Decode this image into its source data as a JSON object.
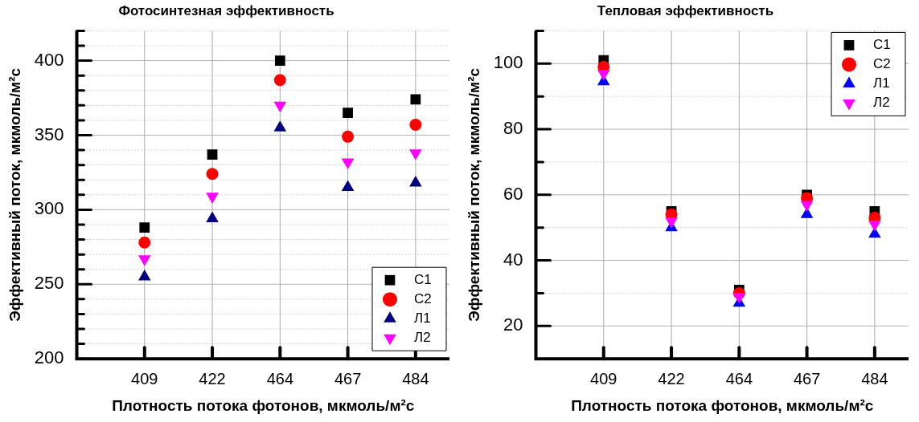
{
  "chart_data": [
    {
      "type": "scatter",
      "title": "Фотосинтезная эффективность",
      "xlabel": "Плотность потока фотонов, мкмоль/м²с",
      "ylabel": "Эффективный поток, мкмоль/м²с",
      "categories": [
        "409",
        "422",
        "464",
        "467",
        "484"
      ],
      "series": [
        {
          "name": "С1",
          "color": "#000000",
          "marker": "square",
          "values": [
            288,
            337,
            400,
            365,
            374
          ]
        },
        {
          "name": "С2",
          "color": "#ff0000",
          "marker": "circle",
          "values": [
            278,
            324,
            387,
            349,
            357
          ]
        },
        {
          "name": "Л1",
          "color": "#000080",
          "marker": "triangle",
          "values": [
            255,
            294,
            355,
            315,
            318
          ]
        },
        {
          "name": "Л2",
          "color": "#ff00ff",
          "marker": "triangle-down",
          "values": [
            267,
            309,
            370,
            332,
            338
          ]
        }
      ],
      "ylim": [
        200,
        420
      ],
      "yticks": [
        200,
        {
          "value": 210,
          "label": null
        },
        {
          "value": 220,
          "label": null
        },
        {
          "value": 230,
          "label": null
        },
        {
          "value": 240,
          "label": null
        },
        250,
        {
          "value": 260,
          "label": null
        },
        {
          "value": 270,
          "label": null
        },
        {
          "value": 280,
          "label": null
        },
        {
          "value": 290,
          "label": null
        },
        300,
        {
          "value": 310,
          "label": null
        },
        {
          "value": 320,
          "label": null
        },
        {
          "value": 330,
          "label": null
        },
        {
          "value": 340,
          "label": null
        },
        350,
        {
          "value": 360,
          "label": null
        },
        {
          "value": 370,
          "label": null
        },
        {
          "value": 380,
          "label": null
        },
        {
          "value": 390,
          "label": null
        },
        400,
        {
          "value": 410,
          "label": null
        },
        {
          "value": 420,
          "label": null
        }
      ],
      "grid": true,
      "legend": "bottom right"
    },
    {
      "type": "scatter",
      "title": "Тепловая эффективность",
      "xlabel": "Плотность потока фотонов, мкмоль/м²с",
      "ylabel": "Эффективный поток, мкмоль/м²с",
      "categories": [
        "409",
        "422",
        "464",
        "467",
        "484"
      ],
      "series": [
        {
          "name": "С1",
          "color": "#000000",
          "marker": "square",
          "values": [
            101,
            55,
            31,
            60,
            55
          ]
        },
        {
          "name": "С2",
          "color": "#ff0000",
          "marker": "circle",
          "values": [
            99,
            54,
            30,
            59,
            53
          ]
        },
        {
          "name": "Л1",
          "color": "#0000ff",
          "marker": "triangle",
          "values": [
            94.5,
            50,
            27,
            54,
            48
          ]
        },
        {
          "name": "Л2",
          "color": "#ff00ff",
          "marker": "triangle-down",
          "values": [
            97,
            52,
            29,
            57,
            51
          ]
        }
      ],
      "ylim": [
        10,
        110
      ],
      "yticks": [
        20,
        {
          "value": 30,
          "label": null
        },
        40,
        {
          "value": 50,
          "label": null
        },
        60,
        {
          "value": 70,
          "label": null
        },
        80,
        {
          "value": 90,
          "label": null
        },
        100,
        {
          "value": 110,
          "label": null
        }
      ],
      "grid": true,
      "legend": "top right"
    }
  ]
}
